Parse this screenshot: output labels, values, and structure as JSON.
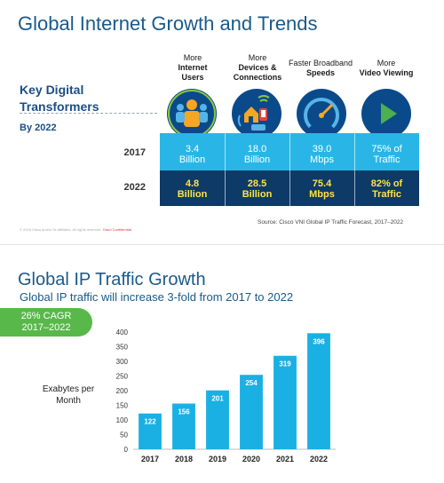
{
  "slide1": {
    "title": "Global Internet Growth and Trends",
    "key_line1": "Key Digital",
    "key_line2": "Transformers",
    "by": "By 2022",
    "categories": [
      {
        "line1": "More",
        "line2": "Internet",
        "line3": "Users",
        "icon": "user-icon"
      },
      {
        "line1": "More",
        "line2": "Devices &",
        "line3": "Connections",
        "icon": "devices-icon"
      },
      {
        "line1": "Faster Broadband",
        "line2": "Speeds",
        "line3": "",
        "icon": "speedometer-icon"
      },
      {
        "line1": "More",
        "line2": "Video Viewing",
        "line3": "",
        "icon": "play-icon"
      }
    ],
    "row2017": {
      "year": "2017",
      "values": [
        [
          "3.4",
          "Billion"
        ],
        [
          "18.0",
          "Billion"
        ],
        [
          "39.0",
          "Mbps"
        ],
        [
          "75% of",
          "Traffic"
        ]
      ]
    },
    "row2022": {
      "year": "2022",
      "values": [
        [
          "4.8",
          "Billion"
        ],
        [
          "28.5",
          "Billion"
        ],
        [
          "75.4",
          "Mbps"
        ],
        [
          "82% of",
          "Traffic"
        ]
      ]
    },
    "source": "Source: Cisco VNI Global IP Traffic Forecast, 2017–2022",
    "footer": "© 2018 Cisco and/or its affiliates. All rights reserved.",
    "footer_red": "Cisco Confidential"
  },
  "slide2": {
    "title": "Global IP Traffic Growth",
    "subtitle": "Global IP traffic will increase 3-fold from 2017 to 2022",
    "cagr_line1": "26% CAGR",
    "cagr_line2": "2017–2022",
    "ylabel_line1": "Exabytes per",
    "ylabel_line2": "Month"
  },
  "chart_data": {
    "type": "bar",
    "categories": [
      "2017",
      "2018",
      "2019",
      "2020",
      "2021",
      "2022"
    ],
    "values": [
      122,
      156,
      201,
      254,
      319,
      396
    ],
    "ylabel": "Exabytes per Month",
    "ylim": [
      0,
      400
    ],
    "yticks": [
      0,
      50,
      100,
      150,
      200,
      250,
      300,
      350,
      400
    ],
    "grid": false,
    "bar_color": "#1ab0e3"
  }
}
